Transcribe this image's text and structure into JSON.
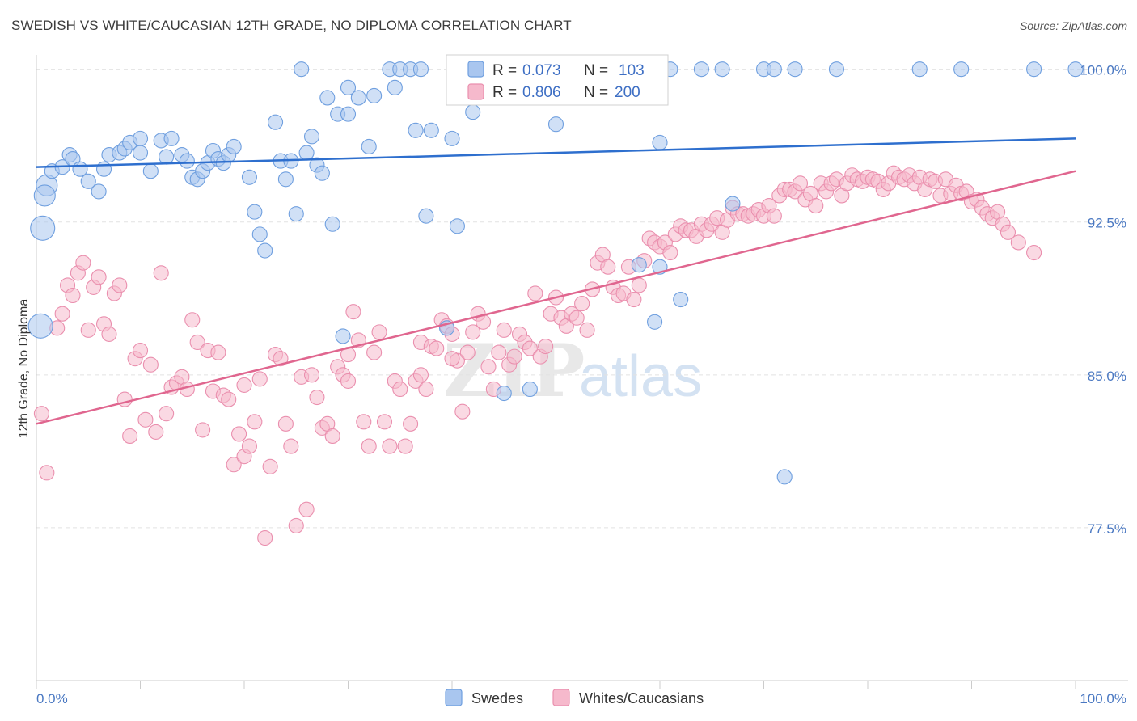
{
  "title": "SWEDISH VS WHITE/CAUCASIAN 12TH GRADE, NO DIPLOMA CORRELATION CHART",
  "source": "Source: ZipAtlas.com",
  "watermark": {
    "zip": "ZIP",
    "atlas": "atlas"
  },
  "legend": {
    "r_label": "R =",
    "n_label": "N =",
    "swedes": {
      "r": "0.073",
      "n": "103"
    },
    "whites": {
      "r": "0.806",
      "n": "200"
    }
  },
  "colors": {
    "blue_fill": "#a9c6ef",
    "blue_stroke": "#6f9fdf",
    "blue_line": "#2e6fce",
    "pink_fill": "#f6b9cc",
    "pink_stroke": "#ea8fae",
    "pink_line": "#e0668f",
    "tick_text": "#4a78c2"
  },
  "chart_data": {
    "type": "scatter",
    "title": "SWEDISH VS WHITE/CAUCASIAN 12TH GRADE, NO DIPLOMA CORRELATION CHART",
    "xlabel": "",
    "ylabel": "12th Grade, No Diploma",
    "xlim": [
      0,
      100
    ],
    "ylim": [
      70.0,
      100.7
    ],
    "x_tick_labels": [
      "0.0%",
      "100.0%"
    ],
    "y_ticks": [
      100.0,
      92.5,
      85.0,
      77.5
    ],
    "y_tick_labels": [
      "100.0%",
      "92.5%",
      "85.0%",
      "77.5%"
    ],
    "grid": true,
    "legend_position": "top-center",
    "series": [
      {
        "name": "Swedes",
        "trend": {
          "x": [
            0,
            100
          ],
          "y": [
            95.2,
            96.6
          ]
        },
        "points": [
          [
            1,
            94.3
          ],
          [
            1.5,
            95.0
          ],
          [
            2.5,
            95.2
          ],
          [
            3.2,
            95.8
          ],
          [
            3.5,
            95.6
          ],
          [
            4.2,
            95.1
          ],
          [
            5,
            94.5
          ],
          [
            6,
            94.0
          ],
          [
            6.5,
            95.1
          ],
          [
            7,
            95.8
          ],
          [
            8,
            95.9
          ],
          [
            8.5,
            96.1
          ],
          [
            9,
            96.4
          ],
          [
            10,
            96.6
          ],
          [
            10,
            95.9
          ],
          [
            11,
            95.0
          ],
          [
            12,
            96.5
          ],
          [
            12.5,
            95.7
          ],
          [
            13,
            96.6
          ],
          [
            14,
            95.8
          ],
          [
            14.5,
            95.5
          ],
          [
            15,
            94.7
          ],
          [
            15.5,
            94.6
          ],
          [
            16,
            95.0
          ],
          [
            16.5,
            95.4
          ],
          [
            17,
            96.0
          ],
          [
            17.5,
            95.6
          ],
          [
            18,
            95.4
          ],
          [
            18.5,
            95.8
          ],
          [
            19,
            96.2
          ],
          [
            20.5,
            94.7
          ],
          [
            21,
            93.0
          ],
          [
            21.5,
            91.9
          ],
          [
            22,
            91.1
          ],
          [
            23,
            97.4
          ],
          [
            23.5,
            95.5
          ],
          [
            24,
            94.6
          ],
          [
            24.5,
            95.5
          ],
          [
            25,
            92.9
          ],
          [
            25.5,
            100.0
          ],
          [
            26,
            95.9
          ],
          [
            26.5,
            96.7
          ],
          [
            27,
            95.3
          ],
          [
            27.5,
            94.9
          ],
          [
            28,
            98.6
          ],
          [
            28.5,
            92.4
          ],
          [
            29,
            97.8
          ],
          [
            30,
            99.1
          ],
          [
            30,
            97.8
          ],
          [
            31,
            98.6
          ],
          [
            32,
            96.2
          ],
          [
            32.5,
            98.7
          ],
          [
            34,
            100.0
          ],
          [
            34.5,
            99.1
          ],
          [
            35,
            100.0
          ],
          [
            36,
            100.0
          ],
          [
            36.5,
            97.0
          ],
          [
            37,
            100.0
          ],
          [
            37.5,
            92.8
          ],
          [
            38,
            97.0
          ],
          [
            40,
            96.6
          ],
          [
            40.5,
            92.3
          ],
          [
            41,
            100.0
          ],
          [
            42,
            97.9
          ],
          [
            43,
            100.0
          ],
          [
            44.5,
            100.0
          ],
          [
            46,
            100.0
          ],
          [
            47,
            100.0
          ],
          [
            49,
            100.0
          ],
          [
            50,
            97.3
          ],
          [
            51,
            100.0
          ],
          [
            52,
            100.0
          ],
          [
            53,
            100.0
          ],
          [
            55,
            100.0
          ],
          [
            56,
            100.0
          ],
          [
            58,
            90.4
          ],
          [
            59.5,
            87.6
          ],
          [
            60,
            90.3
          ],
          [
            60,
            96.4
          ],
          [
            61,
            100.0
          ],
          [
            62,
            88.7
          ],
          [
            64,
            100.0
          ],
          [
            66,
            100.0
          ],
          [
            67,
            93.4
          ],
          [
            70,
            100.0
          ],
          [
            71,
            100.0
          ],
          [
            72,
            80.0
          ],
          [
            73,
            100.0
          ],
          [
            77,
            100.0
          ],
          [
            85,
            100.0
          ],
          [
            89,
            100.0
          ],
          [
            96,
            100.0
          ],
          [
            100,
            100.0
          ],
          [
            29.5,
            86.9
          ],
          [
            39.5,
            87.3
          ],
          [
            45,
            84.1
          ],
          [
            47.5,
            84.3
          ],
          [
            0.8,
            93.8
          ],
          [
            0.6,
            92.2
          ],
          [
            0.4,
            87.4
          ]
        ]
      },
      {
        "name": "Whites/Caucasians",
        "trend": {
          "x": [
            0,
            100
          ],
          "y": [
            82.6,
            95.0
          ]
        },
        "points": [
          [
            0.5,
            83.1
          ],
          [
            1,
            80.2
          ],
          [
            2,
            87.3
          ],
          [
            2.5,
            88.0
          ],
          [
            3,
            89.4
          ],
          [
            3.5,
            88.9
          ],
          [
            4,
            90.0
          ],
          [
            4.5,
            90.5
          ],
          [
            5,
            87.2
          ],
          [
            5.5,
            89.3
          ],
          [
            6,
            89.8
          ],
          [
            6.5,
            87.5
          ],
          [
            7,
            87.0
          ],
          [
            7.5,
            89.0
          ],
          [
            8,
            89.4
          ],
          [
            8.5,
            83.8
          ],
          [
            9,
            82.0
          ],
          [
            9.5,
            85.8
          ],
          [
            10,
            86.2
          ],
          [
            10.5,
            82.8
          ],
          [
            11,
            85.5
          ],
          [
            11.5,
            82.2
          ],
          [
            12,
            90.0
          ],
          [
            12.5,
            83.1
          ],
          [
            13,
            84.4
          ],
          [
            13.5,
            84.6
          ],
          [
            14,
            84.9
          ],
          [
            14.5,
            84.3
          ],
          [
            15,
            87.7
          ],
          [
            15.5,
            86.6
          ],
          [
            16,
            82.3
          ],
          [
            16.5,
            86.2
          ],
          [
            17,
            84.2
          ],
          [
            17.5,
            86.1
          ],
          [
            18,
            84.0
          ],
          [
            18.5,
            83.8
          ],
          [
            19,
            80.6
          ],
          [
            19.5,
            82.1
          ],
          [
            20,
            81.0
          ],
          [
            20.5,
            81.5
          ],
          [
            21,
            82.7
          ],
          [
            21.5,
            84.8
          ],
          [
            22,
            77.0
          ],
          [
            22.5,
            80.5
          ],
          [
            23,
            86.0
          ],
          [
            23.5,
            85.8
          ],
          [
            24,
            82.6
          ],
          [
            24.5,
            81.5
          ],
          [
            25,
            77.6
          ],
          [
            25.5,
            84.9
          ],
          [
            26,
            78.4
          ],
          [
            26.5,
            85.0
          ],
          [
            27,
            83.9
          ],
          [
            27.5,
            82.4
          ],
          [
            28,
            82.6
          ],
          [
            28.5,
            82.0
          ],
          [
            29,
            85.4
          ],
          [
            29.5,
            85.0
          ],
          [
            30,
            86.0
          ],
          [
            30.5,
            88.1
          ],
          [
            31,
            86.7
          ],
          [
            31.5,
            82.7
          ],
          [
            32,
            81.5
          ],
          [
            32.5,
            86.1
          ],
          [
            33,
            87.1
          ],
          [
            33.5,
            82.7
          ],
          [
            34,
            81.5
          ],
          [
            34.5,
            84.7
          ],
          [
            35,
            84.3
          ],
          [
            35.5,
            81.5
          ],
          [
            36,
            82.6
          ],
          [
            36.5,
            84.7
          ],
          [
            37,
            86.6
          ],
          [
            37.5,
            84.3
          ],
          [
            38,
            86.4
          ],
          [
            38.5,
            86.3
          ],
          [
            39,
            87.7
          ],
          [
            39.5,
            87.4
          ],
          [
            40,
            87.0
          ],
          [
            40.5,
            85.7
          ],
          [
            41,
            83.2
          ],
          [
            41.5,
            86.1
          ],
          [
            42,
            87.1
          ],
          [
            42.5,
            88.0
          ],
          [
            43,
            87.6
          ],
          [
            43.5,
            85.4
          ],
          [
            44,
            84.3
          ],
          [
            44.5,
            86.1
          ],
          [
            45,
            87.2
          ],
          [
            45.5,
            85.5
          ],
          [
            46,
            85.9
          ],
          [
            46.5,
            87.0
          ],
          [
            47,
            86.6
          ],
          [
            47.5,
            86.3
          ],
          [
            48,
            89.0
          ],
          [
            48.5,
            85.9
          ],
          [
            49,
            86.4
          ],
          [
            49.5,
            88.0
          ],
          [
            50,
            88.8
          ],
          [
            50.5,
            87.8
          ],
          [
            51,
            87.4
          ],
          [
            51.5,
            88.0
          ],
          [
            52,
            87.8
          ],
          [
            52.5,
            88.5
          ],
          [
            53,
            87.2
          ],
          [
            53.5,
            89.2
          ],
          [
            54,
            90.5
          ],
          [
            54.5,
            90.9
          ],
          [
            55,
            90.3
          ],
          [
            55.5,
            89.3
          ],
          [
            56,
            88.9
          ],
          [
            56.5,
            89.0
          ],
          [
            57,
            90.3
          ],
          [
            57.5,
            88.7
          ],
          [
            58,
            89.4
          ],
          [
            58.5,
            90.6
          ],
          [
            59,
            91.7
          ],
          [
            59.5,
            91.5
          ],
          [
            60,
            91.3
          ],
          [
            60.5,
            91.5
          ],
          [
            61,
            91.0
          ],
          [
            61.5,
            91.9
          ],
          [
            62,
            92.3
          ],
          [
            62.5,
            92.1
          ],
          [
            63,
            92.1
          ],
          [
            63.5,
            91.8
          ],
          [
            64,
            92.4
          ],
          [
            64.5,
            92.1
          ],
          [
            65,
            92.4
          ],
          [
            65.5,
            92.7
          ],
          [
            66,
            92.0
          ],
          [
            66.5,
            92.6
          ],
          [
            67,
            93.2
          ],
          [
            67.5,
            92.9
          ],
          [
            68,
            92.9
          ],
          [
            68.5,
            92.8
          ],
          [
            69,
            92.9
          ],
          [
            69.5,
            93.1
          ],
          [
            70,
            92.8
          ],
          [
            70.5,
            93.3
          ],
          [
            71,
            92.8
          ],
          [
            71.5,
            93.8
          ],
          [
            72,
            94.1
          ],
          [
            72.5,
            94.1
          ],
          [
            73,
            94.0
          ],
          [
            73.5,
            94.4
          ],
          [
            74,
            93.6
          ],
          [
            74.5,
            93.9
          ],
          [
            75,
            93.3
          ],
          [
            75.5,
            94.4
          ],
          [
            76,
            94.0
          ],
          [
            76.5,
            94.4
          ],
          [
            77,
            94.6
          ],
          [
            77.5,
            93.8
          ],
          [
            78,
            94.4
          ],
          [
            78.5,
            94.8
          ],
          [
            79,
            94.6
          ],
          [
            79.5,
            94.5
          ],
          [
            80,
            94.7
          ],
          [
            80.5,
            94.6
          ],
          [
            81,
            94.5
          ],
          [
            81.5,
            94.1
          ],
          [
            82,
            94.4
          ],
          [
            82.5,
            94.9
          ],
          [
            83,
            94.7
          ],
          [
            83.5,
            94.6
          ],
          [
            84,
            94.8
          ],
          [
            84.5,
            94.4
          ],
          [
            85,
            94.7
          ],
          [
            85.5,
            94.1
          ],
          [
            86,
            94.6
          ],
          [
            86.5,
            94.5
          ],
          [
            87,
            93.8
          ],
          [
            87.5,
            94.6
          ],
          [
            88,
            93.9
          ],
          [
            88.5,
            94.3
          ],
          [
            89,
            93.9
          ],
          [
            89.5,
            94.0
          ],
          [
            90,
            93.5
          ],
          [
            90.5,
            93.6
          ],
          [
            91,
            93.2
          ],
          [
            91.5,
            92.9
          ],
          [
            92,
            92.7
          ],
          [
            92.5,
            93.0
          ],
          [
            93,
            92.4
          ],
          [
            93.5,
            92.0
          ],
          [
            94.5,
            91.5
          ],
          [
            96,
            91.0
          ],
          [
            20,
            84.5
          ],
          [
            30,
            84.7
          ],
          [
            40,
            85.8
          ],
          [
            37,
            85.0
          ]
        ]
      }
    ]
  }
}
